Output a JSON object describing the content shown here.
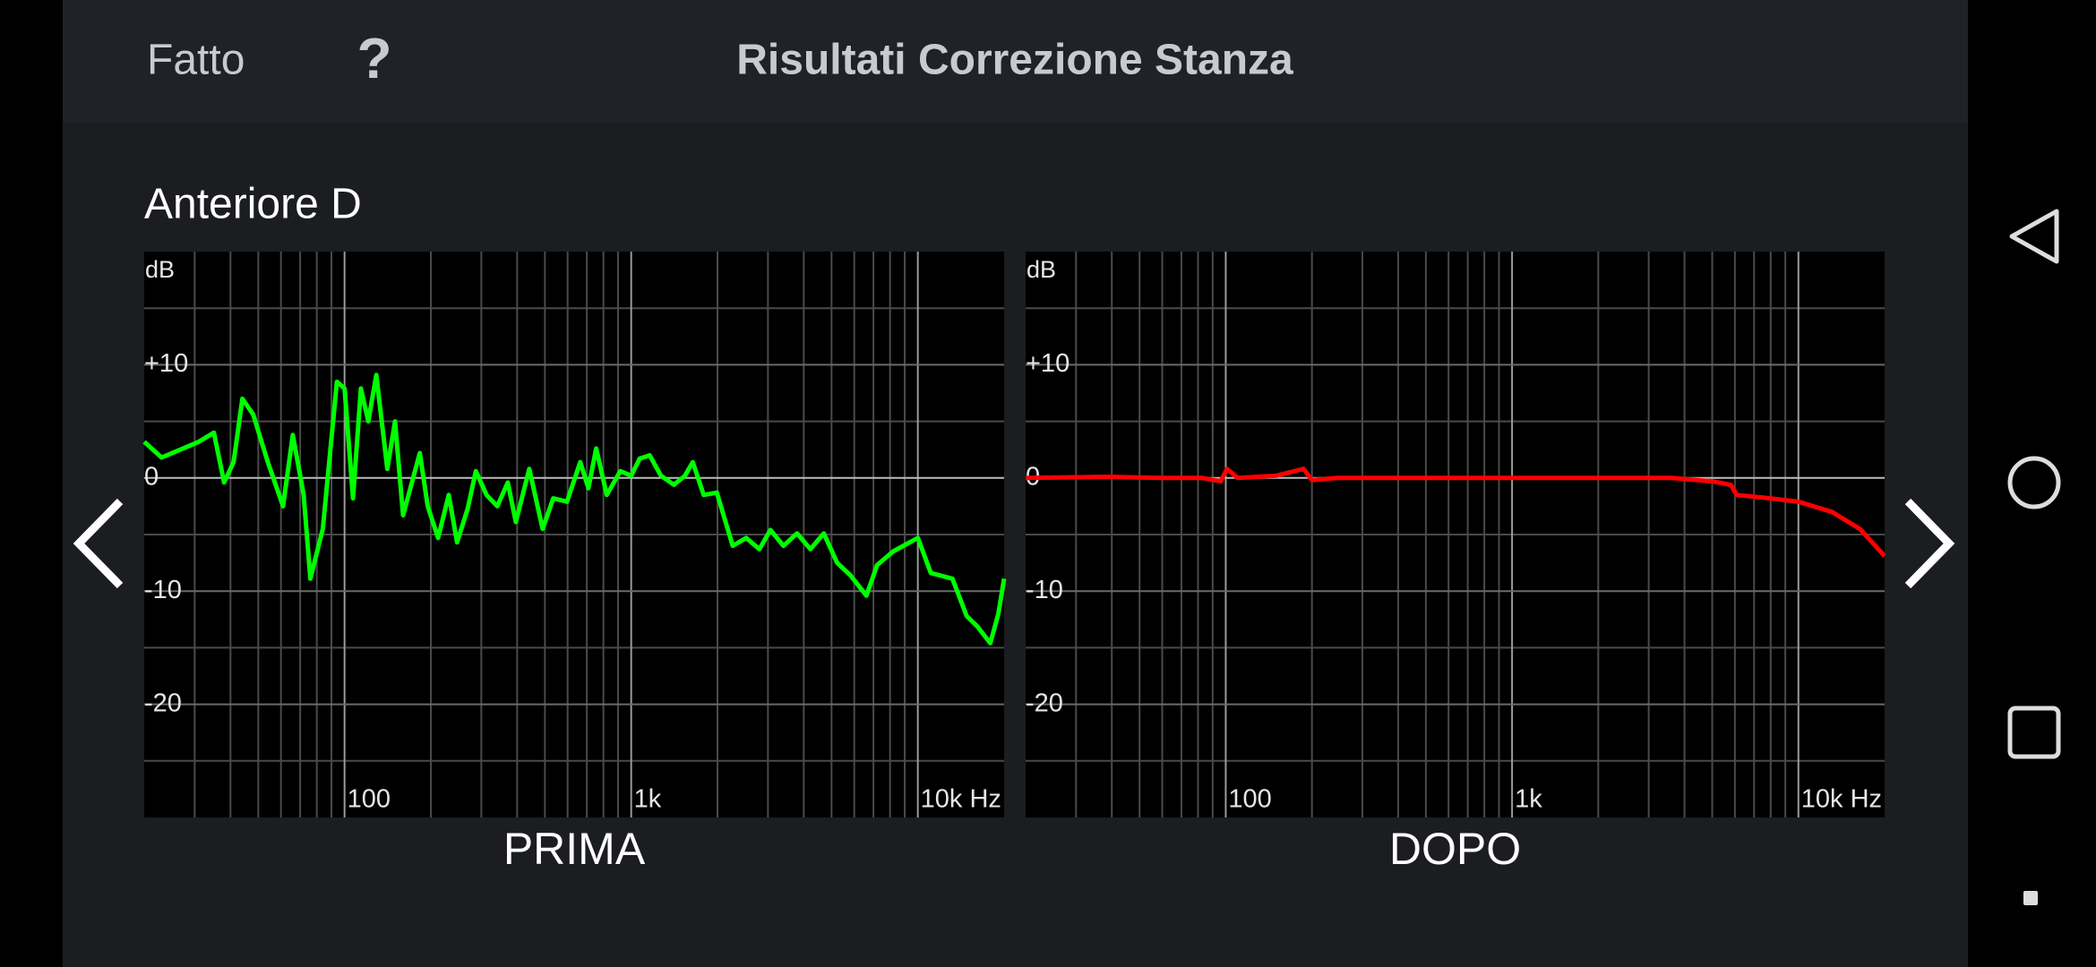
{
  "header": {
    "done": "Fatto",
    "help": "?",
    "title": "Risultati Correzione Stanza"
  },
  "section_title": "Anteriore D",
  "chart_data": [
    {
      "type": "line",
      "title": "PRIMA",
      "y_label": "dB",
      "xscale": "log",
      "grid": true,
      "xlim": [
        20,
        20000
      ],
      "ylim": [
        -30,
        20
      ],
      "xticks": [
        100,
        {
          "value": 1000,
          "label": "1k"
        },
        {
          "value": 10000,
          "label": "10k Hz"
        }
      ],
      "minor_xticks": [
        30,
        40,
        50,
        60,
        70,
        80,
        90,
        200,
        300,
        400,
        500,
        600,
        700,
        800,
        900,
        2000,
        3000,
        4000,
        5000,
        6000,
        7000,
        8000,
        9000
      ],
      "yticks": [
        {
          "value": 10,
          "label": "+10"
        },
        0,
        -10,
        -20
      ],
      "minor_yticks": [
        15,
        5,
        -5,
        -15,
        -25
      ],
      "color": "#00ff00",
      "x": [
        20,
        23,
        31,
        35,
        38,
        41,
        44,
        48,
        54,
        61,
        66,
        72,
        76,
        84,
        94,
        100,
        107,
        114,
        121,
        129,
        141,
        150,
        160,
        183,
        195,
        212,
        231,
        247,
        269,
        287,
        313,
        341,
        371,
        396,
        441,
        491,
        535,
        597,
        664,
        709,
        755,
        822,
        916,
        1000,
        1070,
        1160,
        1270,
        1410,
        1540,
        1640,
        1790,
        1990,
        2260,
        2520,
        2800,
        3060,
        3400,
        3790,
        4220,
        4700,
        5230,
        5820,
        6620,
        7210,
        8190,
        10000,
        11100,
        13200,
        14800,
        16100,
        17900,
        19100,
        20000
      ],
      "values": [
        3.2,
        1.8,
        3.2,
        4.0,
        -0.4,
        1.4,
        7.0,
        5.6,
        1.4,
        -2.5,
        3.8,
        -1.5,
        -8.9,
        -4.5,
        8.5,
        7.9,
        -1.8,
        7.9,
        5.0,
        9.1,
        0.8,
        5.0,
        -3.3,
        2.2,
        -2.5,
        -5.3,
        -1.5,
        -5.7,
        -2.7,
        0.6,
        -1.5,
        -2.5,
        -0.4,
        -3.9,
        0.8,
        -4.5,
        -1.8,
        -2.1,
        1.4,
        -0.9,
        2.6,
        -1.5,
        0.6,
        0.2,
        1.7,
        2.0,
        0.2,
        -0.6,
        0.2,
        1.4,
        -1.5,
        -1.3,
        -6.0,
        -5.3,
        -6.3,
        -4.6,
        -6.0,
        -4.9,
        -6.3,
        -4.9,
        -7.5,
        -8.6,
        -10.4,
        -7.7,
        -6.5,
        -5.3,
        -8.4,
        -8.9,
        -12.2,
        -13.1,
        -14.6,
        -12.0,
        -8.9
      ]
    },
    {
      "type": "line",
      "title": "DOPO",
      "y_label": "dB",
      "xscale": "log",
      "grid": true,
      "xlim": [
        20,
        20000
      ],
      "ylim": [
        -30,
        20
      ],
      "xticks": [
        100,
        {
          "value": 1000,
          "label": "1k"
        },
        {
          "value": 10000,
          "label": "10k Hz"
        }
      ],
      "minor_xticks": [
        30,
        40,
        50,
        60,
        70,
        80,
        90,
        200,
        300,
        400,
        500,
        600,
        700,
        800,
        900,
        2000,
        3000,
        4000,
        5000,
        6000,
        7000,
        8000,
        9000
      ],
      "yticks": [
        {
          "value": 10,
          "label": "+10"
        },
        0,
        -10,
        -20
      ],
      "minor_yticks": [
        15,
        5,
        -5,
        -15,
        -25
      ],
      "color": "#ff0000",
      "x": [
        20,
        39,
        60,
        83,
        96,
        101,
        110,
        150,
        187,
        200,
        244,
        500,
        1000,
        2000,
        3600,
        5000,
        5800,
        6100,
        8000,
        10000,
        13100,
        16400,
        20000
      ],
      "values": [
        0,
        0.1,
        0,
        0,
        -0.3,
        0.8,
        0,
        0.2,
        0.8,
        -0.2,
        0,
        0,
        0,
        0,
        0,
        -0.3,
        -0.6,
        -1.5,
        -1.8,
        -2.1,
        -3.0,
        -4.5,
        -6.9
      ]
    }
  ]
}
